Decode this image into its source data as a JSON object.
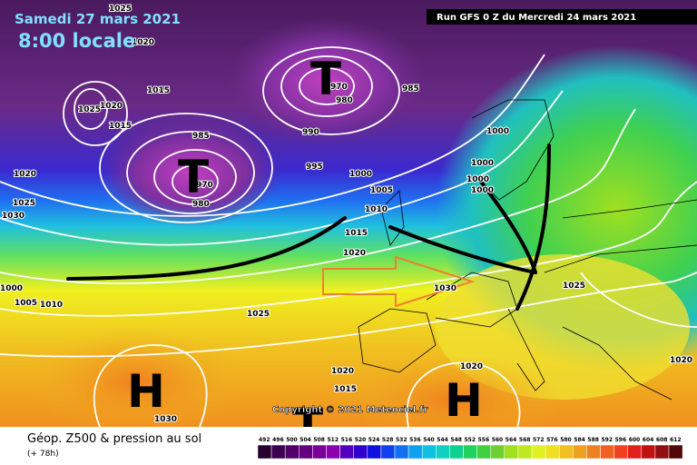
{
  "header": {
    "date": "Samedi 27 mars 2021",
    "time": "8:00 locale",
    "run": "Run GFS 0 Z du Mercredi 24 mars 2021"
  },
  "copyright": "Copyright © 2021 Meteociel.fr",
  "footer": {
    "title": "Géop. Z500 & pression au sol",
    "lead": "(+ 78h)"
  },
  "scale": [
    492,
    496,
    500,
    504,
    508,
    512,
    516,
    520,
    524,
    528,
    532,
    536,
    540,
    544,
    548,
    552,
    556,
    560,
    564,
    568,
    572,
    576,
    580,
    584,
    588,
    592,
    596,
    600,
    604,
    608,
    612
  ],
  "isobar_labels": [
    1025,
    1020,
    1015,
    1025,
    1020,
    1015,
    970,
    980,
    985,
    985,
    990,
    995,
    1000,
    1005,
    1010,
    1015,
    1020,
    1020,
    1025,
    1030,
    1000,
    1005,
    1010,
    1025,
    1030,
    1025,
    1020,
    1020,
    1020,
    1015,
    1030,
    970,
    980,
    1000,
    1000,
    1000,
    1000
  ],
  "symbols": [
    "T",
    "T",
    "H",
    "H",
    "T"
  ]
}
